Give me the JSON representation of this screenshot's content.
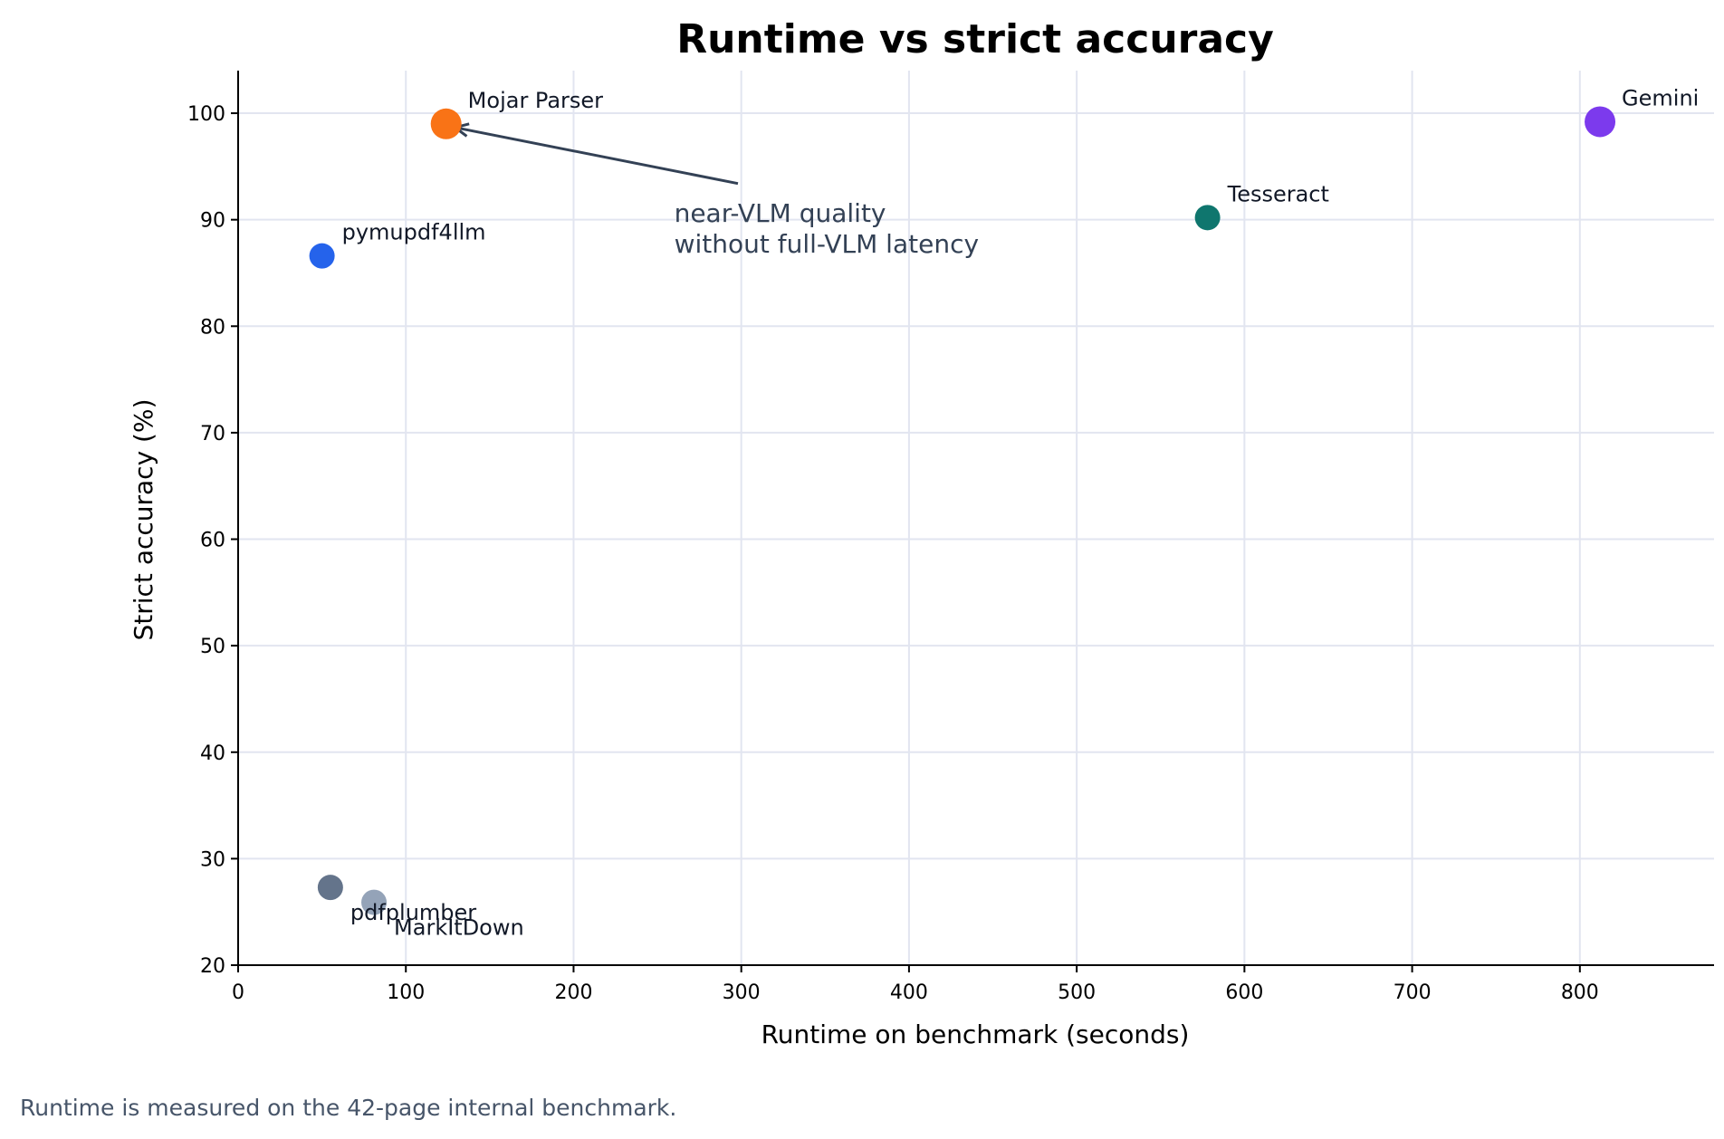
{
  "chart_data": {
    "type": "scatter",
    "title": "Runtime vs strict accuracy",
    "xlabel": "Runtime on benchmark (seconds)",
    "ylabel": "Strict accuracy (%)",
    "xlim": [
      0,
      880
    ],
    "ylim": [
      20,
      104
    ],
    "xticks": [
      0,
      100,
      200,
      300,
      400,
      500,
      600,
      700,
      800
    ],
    "yticks": [
      20,
      30,
      40,
      50,
      60,
      70,
      80,
      90,
      100
    ],
    "grid": true,
    "points": [
      {
        "name": "Mojar Parser",
        "x": 124,
        "y": 99.0,
        "color": "#f97316",
        "size": "large"
      },
      {
        "name": "Gemini",
        "x": 812,
        "y": 99.2,
        "color": "#7c3aed",
        "size": "large"
      },
      {
        "name": "Tesseract",
        "x": 578,
        "y": 90.2,
        "color": "#0f766e",
        "size": "medium"
      },
      {
        "name": "pymupdf4llm",
        "x": 50,
        "y": 86.6,
        "color": "#2563eb",
        "size": "medium"
      },
      {
        "name": "pdfplumber",
        "x": 55,
        "y": 27.3,
        "color": "#64748b",
        "size": "medium"
      },
      {
        "name": "MarkItDown",
        "x": 81,
        "y": 25.9,
        "color": "#94a3b8",
        "size": "medium"
      }
    ],
    "annotation": {
      "lines": [
        "near-VLM quality",
        "without full-VLM latency"
      ],
      "target_point": "Mojar Parser",
      "text_anchor_x": 260,
      "text_anchor_y": 89.8,
      "arrow_tail_x": 298,
      "arrow_tail_y": 93.4
    }
  },
  "footnote": "Runtime is measured on the 42-page internal benchmark."
}
